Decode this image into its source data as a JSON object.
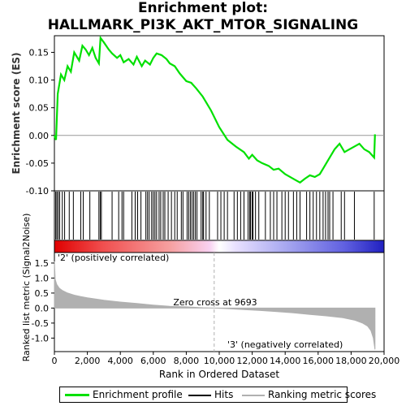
{
  "title_line1": "Enrichment plot:",
  "title_line2": "HALLMARK_PI3K_AKT_MTOR_SIGNALING",
  "colors": {
    "es_line": "#00e000",
    "hits": "#000000",
    "metric_fill": "#b0b0b0",
    "zero_cross": "#b0b0b0",
    "pos_label": "#e00000",
    "neg_label": "#0000cc"
  },
  "chart_data": [
    {
      "type": "line",
      "name": "enrichment",
      "ylabel": "Enrichment score (ES)",
      "ylim": [
        -0.1,
        0.18
      ],
      "yticks": [
        "0.15",
        "0.10",
        "0.05",
        "0.00",
        "-0.05",
        "-0.10"
      ],
      "ytick_values": [
        0.15,
        0.1,
        0.05,
        0.0,
        -0.05,
        -0.1
      ],
      "x": [
        0,
        100,
        200,
        400,
        600,
        800,
        1000,
        1200,
        1500,
        1700,
        1900,
        2100,
        2300,
        2500,
        2700,
        2800,
        3000,
        3300,
        3500,
        3800,
        4000,
        4200,
        4500,
        4800,
        5000,
        5300,
        5500,
        5800,
        6000,
        6200,
        6500,
        6800,
        7000,
        7300,
        7600,
        8000,
        8300,
        8600,
        9000,
        9500,
        10000,
        10500,
        11000,
        11500,
        11800,
        12000,
        12300,
        12600,
        13000,
        13300,
        13600,
        14000,
        14300,
        14600,
        14900,
        15200,
        15500,
        15800,
        16100,
        16300,
        16500,
        16800,
        17000,
        17300,
        17600,
        17900,
        18200,
        18500,
        18800,
        19100,
        19400,
        19450
      ],
      "values": [
        0.0,
        -0.008,
        0.075,
        0.11,
        0.1,
        0.125,
        0.115,
        0.15,
        0.135,
        0.162,
        0.155,
        0.145,
        0.158,
        0.14,
        0.13,
        0.176,
        0.168,
        0.155,
        0.148,
        0.14,
        0.145,
        0.132,
        0.138,
        0.128,
        0.142,
        0.125,
        0.135,
        0.128,
        0.14,
        0.148,
        0.145,
        0.138,
        0.13,
        0.125,
        0.112,
        0.098,
        0.095,
        0.085,
        0.07,
        0.045,
        0.015,
        -0.008,
        -0.02,
        -0.03,
        -0.042,
        -0.035,
        -0.045,
        -0.05,
        -0.055,
        -0.062,
        -0.06,
        -0.07,
        -0.075,
        -0.08,
        -0.085,
        -0.078,
        -0.072,
        -0.075,
        -0.07,
        -0.06,
        -0.05,
        -0.035,
        -0.025,
        -0.015,
        -0.03,
        -0.025,
        -0.02,
        -0.015,
        -0.025,
        -0.03,
        -0.04,
        0.002
      ]
    },
    {
      "type": "hits",
      "name": "hits",
      "x": [
        80,
        150,
        230,
        320,
        480,
        620,
        900,
        1150,
        1600,
        1750,
        2150,
        2700,
        2780,
        2850,
        3500,
        3900,
        4100,
        4200,
        4700,
        4900,
        5050,
        5250,
        5550,
        5650,
        5750,
        5900,
        6000,
        6100,
        6200,
        6350,
        6450,
        6600,
        6700,
        6900,
        7100,
        7300,
        7450,
        7700,
        7800,
        8050,
        8150,
        8250,
        8350,
        8450,
        8550,
        8650,
        8900,
        9000,
        9050,
        9200,
        9400,
        9900,
        10100,
        10300,
        10500,
        10900,
        11100,
        11300,
        11500,
        11750,
        11850,
        11900,
        12000,
        12050,
        12200,
        12400,
        12800,
        13100,
        13300,
        13500,
        13800,
        14000,
        14200,
        14500,
        14700,
        14900,
        15300,
        15500,
        15700,
        15900,
        16100,
        16300,
        16450,
        16600,
        16700,
        16900,
        17400,
        17600,
        18200,
        19400
      ]
    },
    {
      "type": "area",
      "name": "ranked_metric",
      "ylabel": "Ranked list metric (Signal2Noise)",
      "ylim": [
        -1.45,
        1.85
      ],
      "yticks": [
        "1.5",
        "1.0",
        "0.5",
        "0.0",
        "-0.5",
        "-1.0"
      ],
      "ytick_values": [
        1.5,
        1.0,
        0.5,
        0.0,
        -0.5,
        -1.0
      ],
      "x": [
        0,
        50,
        150,
        300,
        500,
        800,
        1200,
        1600,
        2000,
        2500,
        3000,
        4000,
        5000,
        6000,
        7000,
        8000,
        9000,
        9693,
        10500,
        11500,
        12500,
        13500,
        14500,
        15500,
        16500,
        17500,
        18200,
        18700,
        19000,
        19200,
        19350,
        19450
      ],
      "values": [
        1.55,
        0.95,
        0.78,
        0.66,
        0.58,
        0.5,
        0.43,
        0.38,
        0.34,
        0.3,
        0.26,
        0.2,
        0.15,
        0.1,
        0.06,
        0.04,
        0.01,
        0.0,
        -0.02,
        -0.05,
        -0.08,
        -0.12,
        -0.16,
        -0.21,
        -0.26,
        -0.32,
        -0.4,
        -0.5,
        -0.6,
        -0.75,
        -1.0,
        -1.38
      ],
      "xlabel": "Rank in Ordered Dataset",
      "xlim": [
        0,
        20000
      ],
      "xticks": [
        "0",
        "2,000",
        "4,000",
        "6,000",
        "8,000",
        "10,000",
        "12,000",
        "14,000",
        "16,000",
        "18,000",
        "20,000"
      ],
      "xtick_values": [
        0,
        2000,
        4000,
        6000,
        8000,
        10000,
        12000,
        14000,
        16000,
        18000,
        20000
      ],
      "zero_cross": 9693,
      "zero_cross_label": "Zero cross at 9693",
      "pos_label": "'2' (positively correlated)",
      "neg_label": "'3' (negatively correlated)"
    }
  ],
  "legend": {
    "es": "Enrichment profile",
    "hits": "Hits",
    "metric": "Ranking metric scores"
  }
}
